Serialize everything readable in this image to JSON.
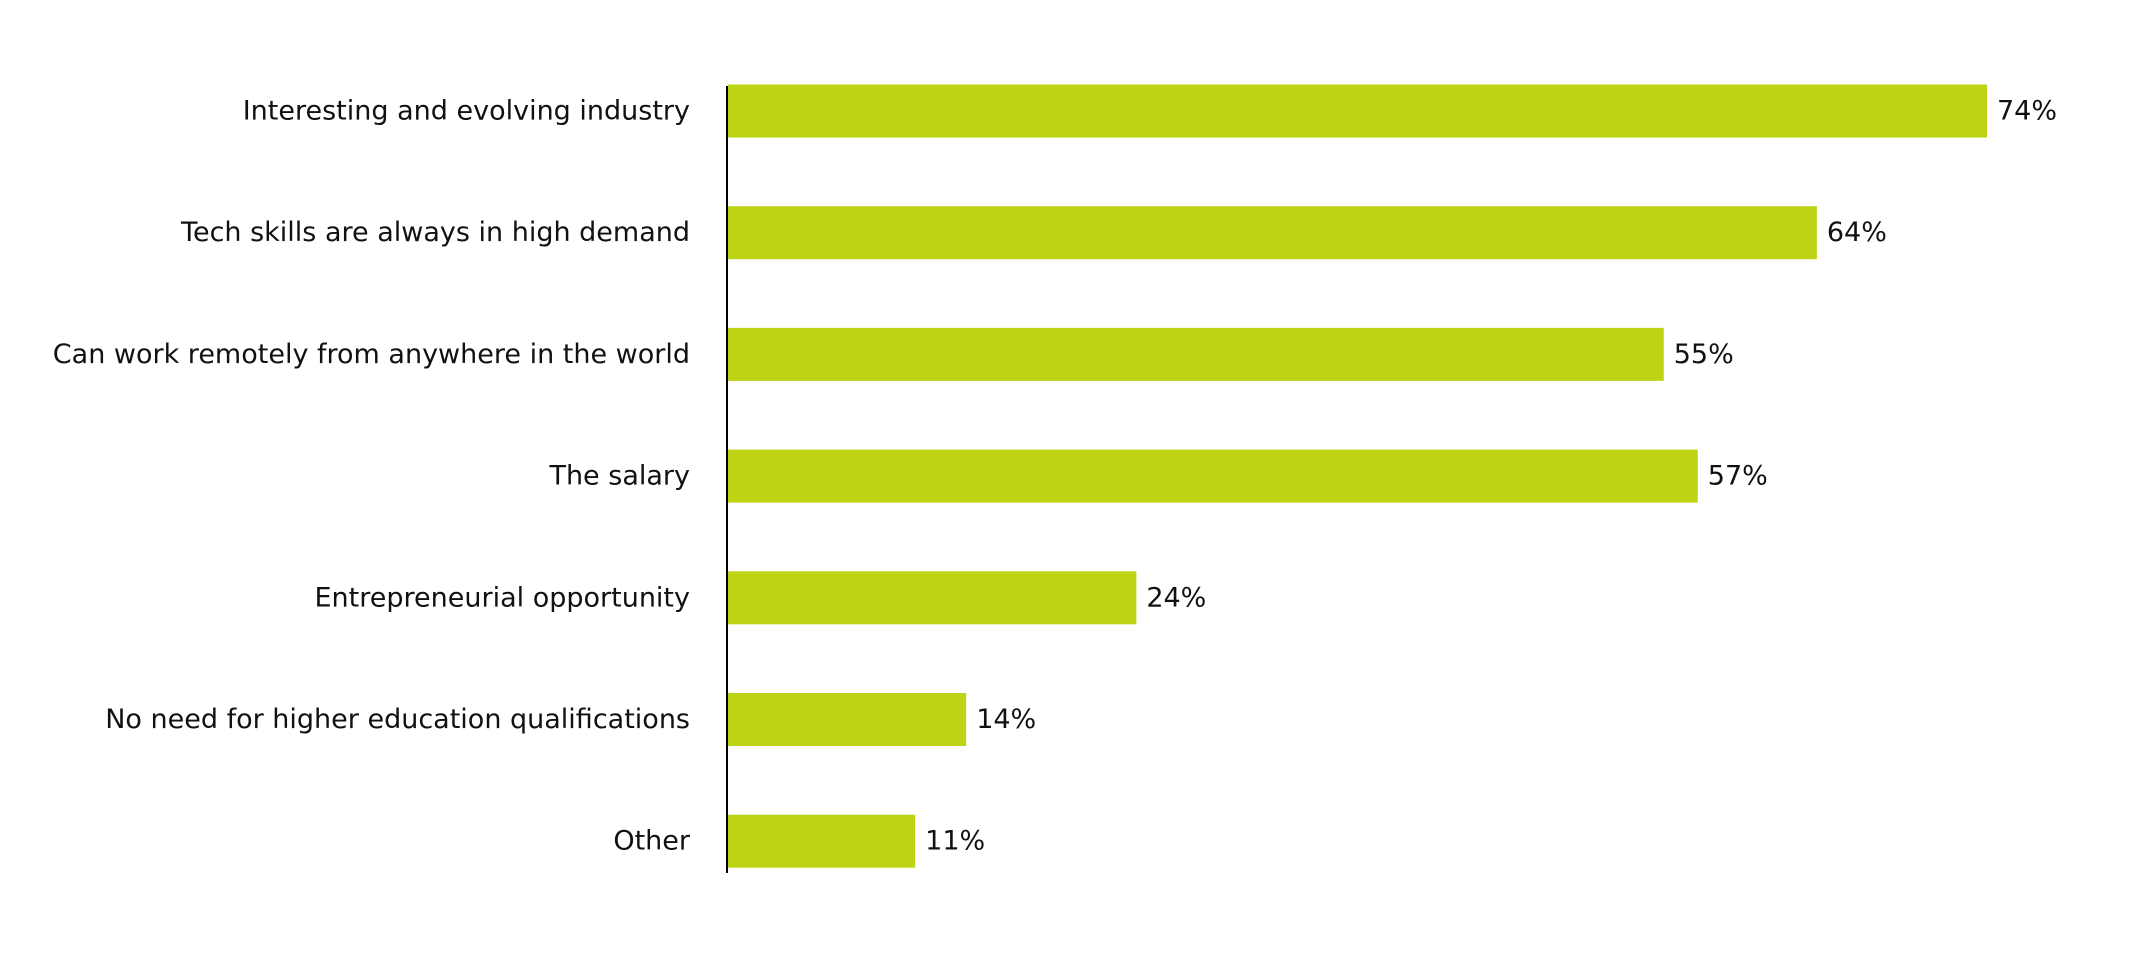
{
  "chart_data": {
    "type": "bar",
    "orientation": "horizontal",
    "categories": [
      "Interesting and evolving industry",
      "Tech skills are always in high demand",
      "Can work remotely from anywhere in the world",
      "The salary",
      "Entrepreneurial opportunity",
      "No need for higher education qualifications",
      "Other"
    ],
    "values": [
      74,
      64,
      55,
      57,
      24,
      14,
      11
    ],
    "value_labels": [
      "74%",
      "64%",
      "55%",
      "57%",
      "24%",
      "14%",
      "11%"
    ],
    "xlim": [
      0,
      74
    ],
    "grid": false,
    "legend": "none",
    "bar_color": "#bdd314",
    "axis_color": "#000000"
  }
}
